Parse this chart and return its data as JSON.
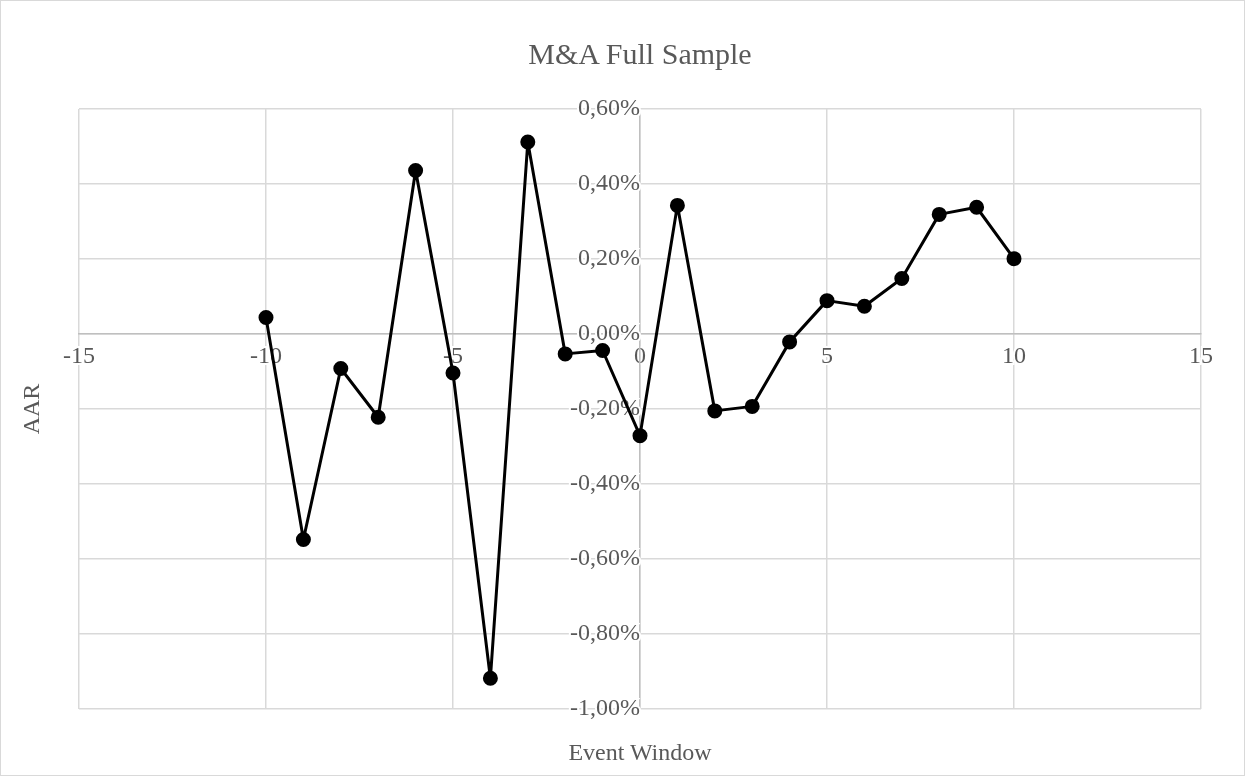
{
  "chart_data": {
    "type": "line",
    "title": "M&A Full Sample",
    "xlabel": "Event Window",
    "ylabel": "AAR",
    "x": [
      -10,
      -9,
      -8,
      -7,
      -6,
      -5,
      -4,
      -3,
      -2,
      -1,
      0,
      1,
      2,
      3,
      4,
      5,
      6,
      7,
      8,
      9,
      10
    ],
    "values": [
      0.044,
      -0.548,
      -0.092,
      -0.222,
      0.436,
      -0.104,
      -0.918,
      0.512,
      -0.053,
      -0.044,
      -0.271,
      0.343,
      -0.205,
      -0.193,
      -0.021,
      0.089,
      0.074,
      0.148,
      0.319,
      0.338,
      0.201
    ],
    "color": "#000000",
    "marker": "circle",
    "line_style": "solid",
    "xlim": [
      -15,
      15
    ],
    "xticks": [
      -15,
      -10,
      -5,
      0,
      5,
      10,
      15
    ],
    "ylim": [
      -1.0,
      0.6
    ],
    "yticks": [
      {
        "value": -1.0,
        "label": "-1,00%"
      },
      {
        "value": -0.8,
        "label": "-0,80%"
      },
      {
        "value": -0.6,
        "label": "-0,60%"
      },
      {
        "value": -0.4,
        "label": "-0,40%"
      },
      {
        "value": -0.2,
        "label": "-0,20%"
      },
      {
        "value": 0,
        "label": "0,00%"
      },
      {
        "value": 0.2,
        "label": "0,20%"
      },
      {
        "value": 0.4,
        "label": "0,40%"
      },
      {
        "value": 0.6,
        "label": "0,60%"
      }
    ],
    "grid": true,
    "legend": false
  }
}
